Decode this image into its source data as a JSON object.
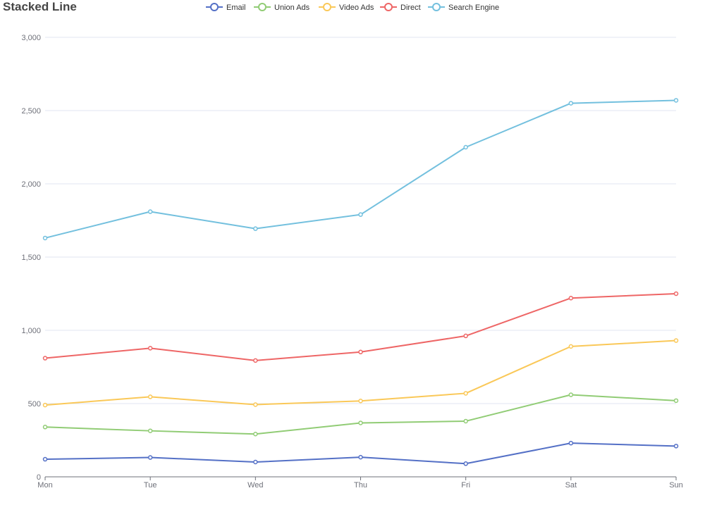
{
  "chart_data": {
    "type": "line",
    "title": "Stacked Line",
    "categories": [
      "Mon",
      "Tue",
      "Wed",
      "Thu",
      "Fri",
      "Sat",
      "Sun"
    ],
    "ylim": [
      0,
      3000
    ],
    "yticks": [
      0,
      500,
      1000,
      1500,
      2000,
      2500,
      3000
    ],
    "ytick_labels": [
      "0",
      "500",
      "1,000",
      "1,500",
      "2,000",
      "2,500",
      "3,000"
    ],
    "grid": true,
    "legend_position": "top-center",
    "series": [
      {
        "name": "Email",
        "color": "#5470c6",
        "values": [
          120,
          132,
          101,
          134,
          90,
          230,
          210
        ]
      },
      {
        "name": "Union Ads",
        "color": "#91cc75",
        "values": [
          340,
          314,
          292,
          368,
          380,
          560,
          520
        ]
      },
      {
        "name": "Video Ads",
        "color": "#fac858",
        "values": [
          490,
          546,
          493,
          518,
          570,
          890,
          930
        ]
      },
      {
        "name": "Direct",
        "color": "#ee6666",
        "values": [
          810,
          878,
          794,
          852,
          962,
          1220,
          1250
        ]
      },
      {
        "name": "Search Engine",
        "color": "#73c0de",
        "values": [
          1630,
          1810,
          1694,
          1790,
          2250,
          2550,
          2570
        ]
      }
    ]
  }
}
